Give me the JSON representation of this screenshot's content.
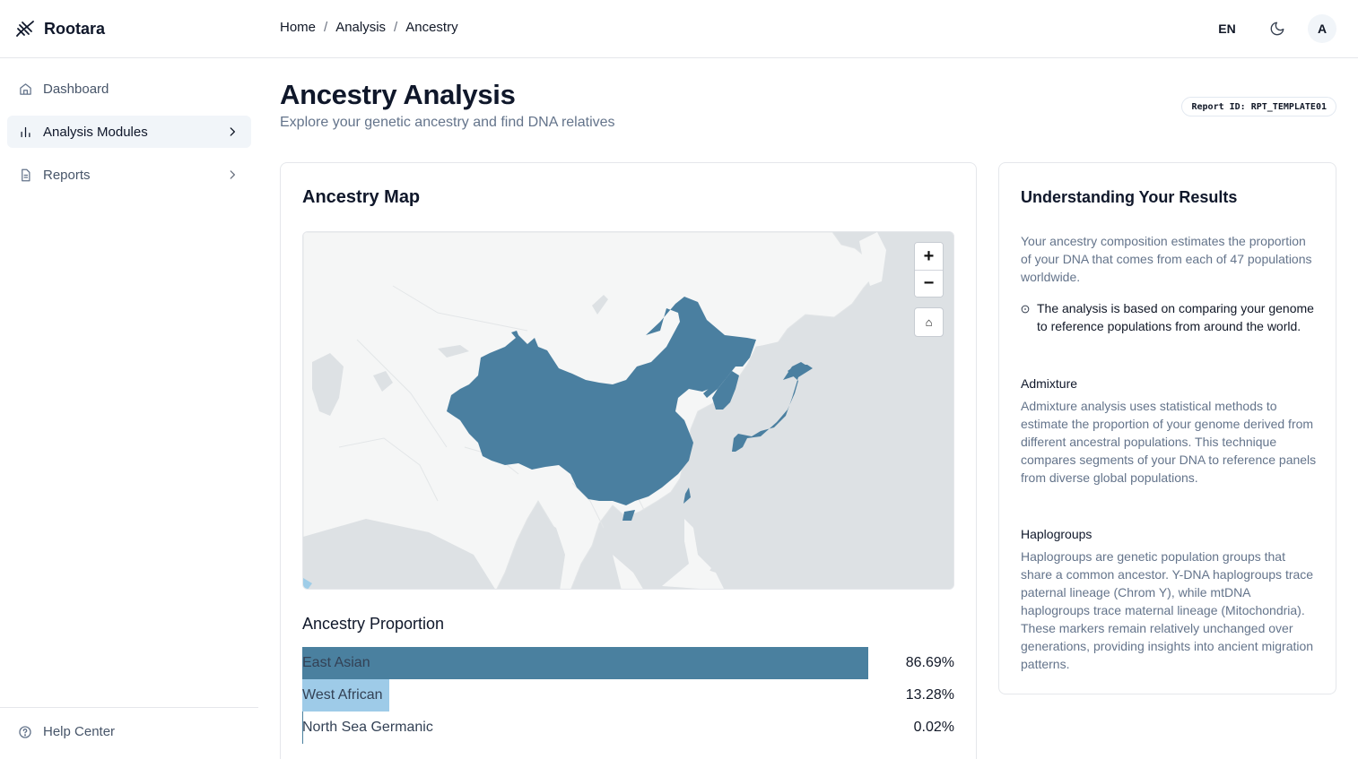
{
  "app": {
    "name": "Rootara"
  },
  "breadcrumb": [
    "Home",
    "Analysis",
    "Ancestry"
  ],
  "header": {
    "language": "EN",
    "avatar_initial": "A"
  },
  "sidebar": {
    "items": [
      {
        "label": "Dashboard",
        "icon": "home-icon"
      },
      {
        "label": "Analysis Modules",
        "icon": "bar-chart-icon",
        "active": true
      },
      {
        "label": "Reports",
        "icon": "document-icon"
      }
    ],
    "footer": {
      "label": "Help Center",
      "icon": "help-circle-icon"
    }
  },
  "page": {
    "title": "Ancestry Analysis",
    "subtitle": "Explore your genetic ancestry and find DNA relatives",
    "report_id": "Report ID: RPT_TEMPLATE01"
  },
  "map_card": {
    "title": "Ancestry Map",
    "zoom_in": "+",
    "zoom_out": "−",
    "home": "⌂",
    "colors": {
      "highlight": "#4a7fa0",
      "land": "#f5f6f6",
      "water": "#dde1e4",
      "light_highlight": "#9fcde8"
    }
  },
  "proportions": {
    "title": "Ancestry Proportion",
    "items": [
      {
        "label": "East Asian",
        "value": "86.69%",
        "fraction": 0.8669,
        "color": "#4a809f"
      },
      {
        "label": "West African",
        "value": "13.28%",
        "fraction": 0.1328,
        "color": "#9ecbe8"
      },
      {
        "label": "North Sea Germanic",
        "value": "0.02%",
        "fraction": 0.0002,
        "color": "#4a809f"
      }
    ]
  },
  "info": {
    "title": "Understanding Your Results",
    "intro": "Your ancestry composition estimates the proportion of your DNA that comes from each of 47 populations worldwide.",
    "note": "The analysis is based on comparing your genome to reference populations from around the world.",
    "admixture_heading": "Admixture",
    "admixture_text": "Admixture analysis uses statistical methods to estimate the proportion of your genome derived from different ancestral populations. This technique compares segments of your DNA to reference panels from diverse global populations.",
    "haplogroups_heading": "Haplogroups",
    "haplogroups_text": "Haplogroups are genetic population groups that share a common ancestor. Y-DNA haplogroups trace paternal lineage (Chrom Y), while mtDNA haplogroups trace maternal lineage (Mitochondria). These markers remain relatively unchanged over generations, providing insights into ancient migration patterns."
  }
}
